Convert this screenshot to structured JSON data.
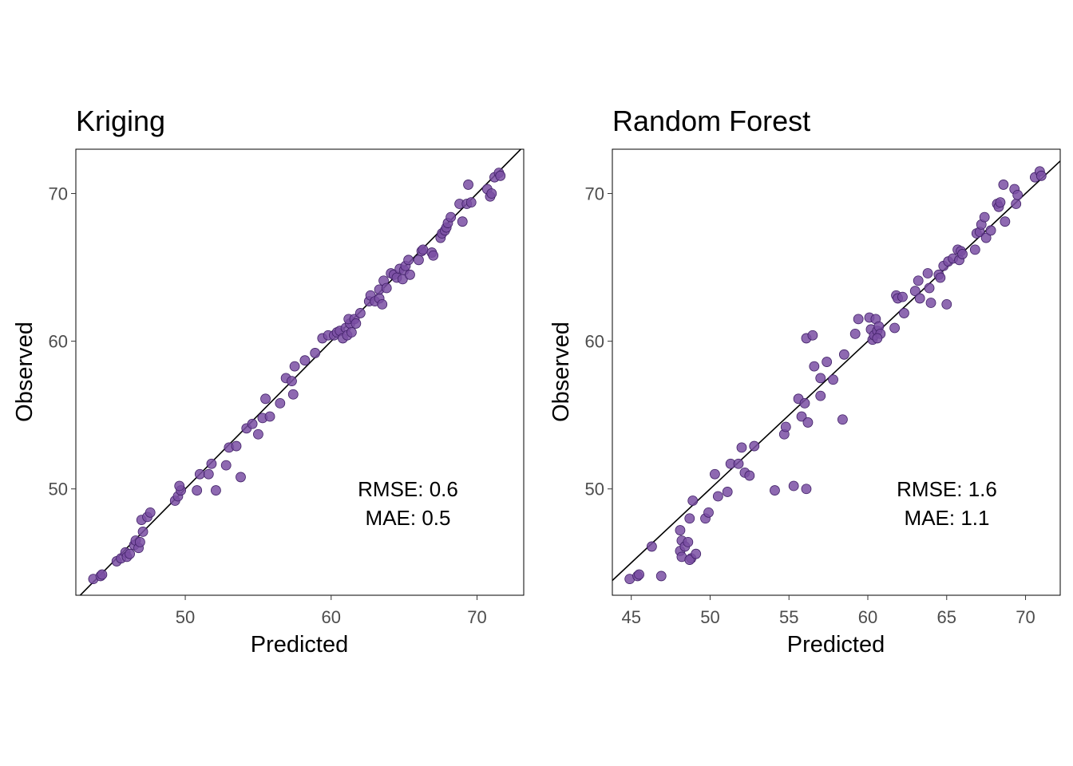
{
  "colors": {
    "point_fill": "#7a4fa3",
    "point_stroke": "#3f1f66",
    "line": "#000000",
    "tick_text": "#4d4d4d"
  },
  "chart_data": [
    {
      "type": "scatter",
      "title": "Kriging",
      "xlabel": "Predicted",
      "ylabel": "Observed",
      "xlim": [
        42.5,
        73.2
      ],
      "ylim": [
        42.8,
        73.0
      ],
      "xticks": [
        50,
        60,
        70
      ],
      "yticks": [
        50,
        60,
        70
      ],
      "reference_line": "y = x",
      "annotation": [
        "RMSE: 0.6",
        "MAE: 0.5"
      ],
      "points": [
        [
          43.7,
          43.9
        ],
        [
          44.2,
          44.1
        ],
        [
          44.3,
          44.2
        ],
        [
          45.3,
          45.1
        ],
        [
          45.6,
          45.3
        ],
        [
          45.9,
          45.7
        ],
        [
          46.0,
          45.4
        ],
        [
          46.2,
          45.6
        ],
        [
          46.5,
          46.2
        ],
        [
          46.6,
          46.5
        ],
        [
          46.8,
          46.0
        ],
        [
          46.9,
          46.4
        ],
        [
          47.1,
          47.1
        ],
        [
          47.0,
          47.9
        ],
        [
          47.4,
          48.1
        ],
        [
          47.6,
          48.4
        ],
        [
          49.3,
          49.2
        ],
        [
          49.5,
          49.5
        ],
        [
          49.7,
          49.9
        ],
        [
          49.6,
          50.2
        ],
        [
          50.8,
          49.9
        ],
        [
          51.0,
          51.0
        ],
        [
          51.6,
          51.0
        ],
        [
          51.8,
          51.7
        ],
        [
          52.1,
          49.9
        ],
        [
          52.8,
          51.6
        ],
        [
          53.0,
          52.8
        ],
        [
          53.5,
          52.9
        ],
        [
          53.8,
          50.8
        ],
        [
          54.2,
          54.1
        ],
        [
          54.6,
          54.4
        ],
        [
          55.0,
          53.7
        ],
        [
          55.3,
          54.8
        ],
        [
          55.5,
          56.1
        ],
        [
          55.8,
          54.9
        ],
        [
          56.5,
          55.8
        ],
        [
          56.9,
          57.5
        ],
        [
          57.3,
          57.3
        ],
        [
          57.4,
          56.4
        ],
        [
          57.5,
          58.3
        ],
        [
          58.2,
          58.7
        ],
        [
          58.9,
          59.2
        ],
        [
          59.4,
          60.2
        ],
        [
          59.8,
          60.4
        ],
        [
          60.2,
          60.4
        ],
        [
          60.4,
          60.6
        ],
        [
          60.6,
          60.7
        ],
        [
          60.8,
          60.2
        ],
        [
          61.0,
          60.9
        ],
        [
          61.1,
          60.4
        ],
        [
          61.3,
          61.2
        ],
        [
          61.2,
          61.5
        ],
        [
          61.4,
          60.6
        ],
        [
          61.6,
          61.5
        ],
        [
          61.7,
          61.2
        ],
        [
          62.0,
          61.9
        ],
        [
          62.6,
          62.7
        ],
        [
          62.7,
          63.1
        ],
        [
          63.0,
          62.7
        ],
        [
          63.3,
          62.9
        ],
        [
          63.5,
          62.5
        ],
        [
          63.3,
          63.5
        ],
        [
          63.6,
          64.1
        ],
        [
          63.8,
          63.6
        ],
        [
          64.1,
          64.6
        ],
        [
          64.3,
          64.5
        ],
        [
          64.5,
          64.3
        ],
        [
          64.7,
          64.9
        ],
        [
          65.0,
          64.8
        ],
        [
          64.9,
          64.2
        ],
        [
          65.1,
          65.1
        ],
        [
          65.3,
          65.5
        ],
        [
          65.4,
          64.5
        ],
        [
          66.0,
          65.5
        ],
        [
          66.2,
          66.1
        ],
        [
          66.3,
          66.2
        ],
        [
          66.9,
          66.0
        ],
        [
          67.0,
          65.8
        ],
        [
          67.5,
          67.0
        ],
        [
          67.6,
          67.3
        ],
        [
          67.8,
          67.5
        ],
        [
          67.9,
          67.7
        ],
        [
          68.0,
          68.0
        ],
        [
          68.2,
          68.4
        ],
        [
          68.8,
          69.3
        ],
        [
          69.0,
          68.1
        ],
        [
          69.3,
          69.3
        ],
        [
          69.6,
          69.4
        ],
        [
          69.4,
          70.6
        ],
        [
          70.7,
          70.3
        ],
        [
          70.9,
          69.8
        ],
        [
          71.0,
          70.0
        ],
        [
          71.2,
          71.1
        ],
        [
          71.5,
          71.4
        ],
        [
          71.6,
          71.2
        ]
      ]
    },
    {
      "type": "scatter",
      "title": "Random Forest",
      "xlabel": "Predicted",
      "ylabel": "Observed",
      "xlim": [
        43.8,
        72.2
      ],
      "ylim": [
        42.8,
        73.0
      ],
      "xticks": [
        45,
        50,
        55,
        60,
        65,
        70
      ],
      "yticks": [
        50,
        60,
        70
      ],
      "reference_line": "y = x",
      "annotation": [
        "RMSE: 1.6",
        "MAE: 1.1"
      ],
      "points": [
        [
          44.9,
          43.9
        ],
        [
          45.4,
          44.1
        ],
        [
          45.5,
          44.2
        ],
        [
          46.3,
          46.1
        ],
        [
          46.9,
          44.1
        ],
        [
          48.1,
          47.2
        ],
        [
          48.2,
          46.5
        ],
        [
          48.1,
          45.8
        ],
        [
          48.2,
          45.4
        ],
        [
          48.4,
          46.1
        ],
        [
          48.6,
          46.4
        ],
        [
          48.7,
          48.0
        ],
        [
          48.8,
          45.3
        ],
        [
          48.7,
          45.2
        ],
        [
          48.9,
          49.2
        ],
        [
          49.1,
          45.6
        ],
        [
          49.7,
          48.0
        ],
        [
          49.9,
          48.4
        ],
        [
          50.3,
          51.0
        ],
        [
          50.5,
          49.5
        ],
        [
          51.1,
          49.8
        ],
        [
          51.3,
          51.7
        ],
        [
          51.8,
          51.7
        ],
        [
          52.0,
          52.8
        ],
        [
          52.2,
          51.1
        ],
        [
          52.5,
          50.9
        ],
        [
          52.8,
          52.9
        ],
        [
          54.1,
          49.9
        ],
        [
          54.7,
          53.7
        ],
        [
          54.8,
          54.2
        ],
        [
          55.3,
          50.2
        ],
        [
          55.6,
          56.1
        ],
        [
          55.8,
          54.9
        ],
        [
          56.0,
          55.8
        ],
        [
          56.1,
          60.2
        ],
        [
          56.1,
          50.0
        ],
        [
          56.2,
          54.5
        ],
        [
          56.5,
          60.4
        ],
        [
          56.6,
          58.3
        ],
        [
          57.0,
          57.5
        ],
        [
          57.0,
          56.3
        ],
        [
          57.4,
          58.6
        ],
        [
          57.8,
          57.4
        ],
        [
          58.4,
          54.7
        ],
        [
          58.5,
          59.1
        ],
        [
          59.2,
          60.5
        ],
        [
          59.4,
          61.5
        ],
        [
          60.1,
          61.6
        ],
        [
          60.2,
          60.8
        ],
        [
          60.3,
          60.1
        ],
        [
          60.4,
          60.4
        ],
        [
          60.5,
          61.5
        ],
        [
          60.6,
          60.7
        ],
        [
          60.7,
          61.0
        ],
        [
          60.8,
          60.5
        ],
        [
          60.6,
          60.2
        ],
        [
          61.7,
          60.9
        ],
        [
          61.8,
          63.1
        ],
        [
          61.9,
          62.9
        ],
        [
          62.2,
          63.0
        ],
        [
          62.3,
          61.9
        ],
        [
          63.0,
          63.4
        ],
        [
          63.2,
          64.1
        ],
        [
          63.3,
          62.9
        ],
        [
          63.8,
          64.6
        ],
        [
          63.9,
          63.6
        ],
        [
          64.0,
          62.6
        ],
        [
          64.5,
          64.5
        ],
        [
          64.6,
          64.3
        ],
        [
          64.8,
          65.1
        ],
        [
          65.0,
          62.5
        ],
        [
          65.1,
          65.4
        ],
        [
          65.4,
          65.6
        ],
        [
          65.7,
          66.2
        ],
        [
          65.8,
          65.5
        ],
        [
          65.9,
          66.1
        ],
        [
          66.0,
          65.9
        ],
        [
          66.8,
          66.2
        ],
        [
          66.9,
          67.3
        ],
        [
          67.1,
          67.4
        ],
        [
          67.2,
          67.9
        ],
        [
          67.4,
          68.4
        ],
        [
          67.5,
          67.0
        ],
        [
          67.8,
          67.5
        ],
        [
          68.2,
          69.3
        ],
        [
          68.3,
          69.1
        ],
        [
          68.4,
          69.4
        ],
        [
          68.6,
          70.6
        ],
        [
          68.7,
          68.1
        ],
        [
          69.3,
          70.3
        ],
        [
          69.4,
          69.3
        ],
        [
          69.5,
          69.9
        ],
        [
          70.6,
          71.1
        ],
        [
          70.9,
          71.5
        ],
        [
          71.0,
          71.2
        ]
      ]
    }
  ]
}
